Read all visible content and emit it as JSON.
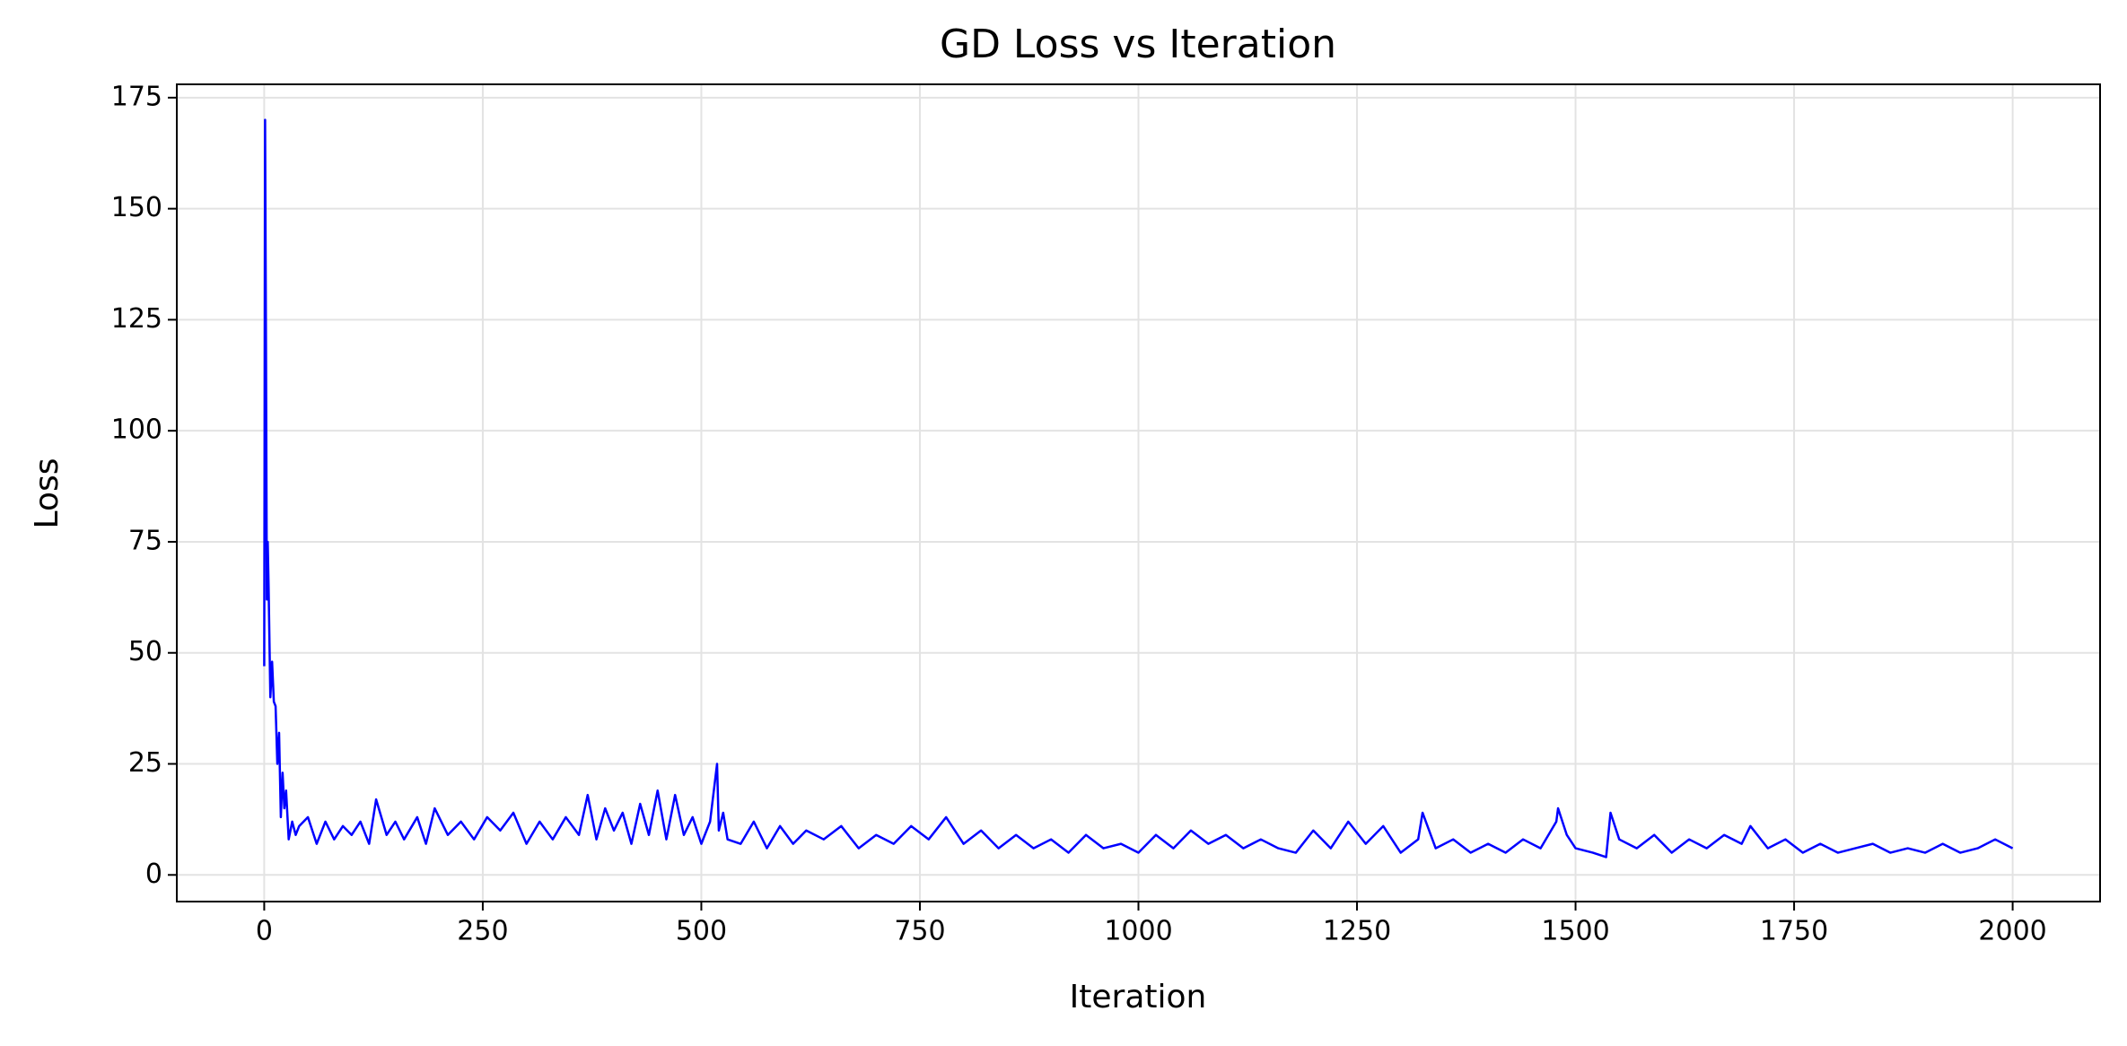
{
  "chart_data": {
    "type": "line",
    "title": "GD Loss vs Iteration",
    "x_label": "Iteration",
    "y_label": "Loss",
    "x": [
      0,
      1,
      2,
      3,
      4,
      5,
      7,
      9,
      11,
      13,
      15,
      17,
      19,
      21,
      23,
      25,
      28,
      32,
      36,
      40,
      50,
      60,
      70,
      80,
      90,
      100,
      110,
      120,
      128,
      140,
      150,
      160,
      175,
      185,
      195,
      210,
      225,
      240,
      255,
      270,
      285,
      300,
      315,
      330,
      345,
      360,
      370,
      380,
      390,
      400,
      410,
      420,
      430,
      440,
      450,
      460,
      470,
      480,
      490,
      500,
      510,
      518,
      520,
      525,
      530,
      545,
      560,
      575,
      590,
      605,
      620,
      640,
      660,
      680,
      700,
      720,
      740,
      760,
      780,
      800,
      820,
      840,
      860,
      880,
      900,
      920,
      940,
      960,
      980,
      1000,
      1020,
      1040,
      1060,
      1080,
      1100,
      1120,
      1140,
      1160,
      1180,
      1200,
      1220,
      1240,
      1260,
      1280,
      1300,
      1320,
      1325,
      1340,
      1360,
      1380,
      1400,
      1420,
      1440,
      1460,
      1478,
      1480,
      1490,
      1500,
      1520,
      1535,
      1540,
      1550,
      1570,
      1590,
      1610,
      1630,
      1650,
      1670,
      1690,
      1700,
      1720,
      1740,
      1760,
      1780,
      1800,
      1820,
      1840,
      1860,
      1880,
      1900,
      1920,
      1940,
      1960,
      1980,
      2000
    ],
    "series": [
      {
        "name": "GD",
        "color": "#0000ff",
        "values": [
          47,
          170,
          120,
          62,
          75,
          65,
          40,
          48,
          39,
          38,
          25,
          32,
          13,
          23,
          15,
          19,
          8,
          12,
          9,
          11,
          13,
          7,
          12,
          8,
          11,
          9,
          12,
          7,
          17,
          9,
          12,
          8,
          13,
          7,
          15,
          9,
          12,
          8,
          13,
          10,
          14,
          7,
          12,
          8,
          13,
          9,
          18,
          8,
          15,
          10,
          14,
          7,
          16,
          9,
          19,
          8,
          18,
          9,
          13,
          7,
          12,
          25,
          10,
          14,
          8,
          7,
          12,
          6,
          11,
          7,
          10,
          8,
          11,
          6,
          9,
          7,
          11,
          8,
          13,
          7,
          10,
          6,
          9,
          6,
          8,
          5,
          9,
          6,
          7,
          5,
          9,
          6,
          10,
          7,
          9,
          6,
          8,
          6,
          5,
          10,
          6,
          12,
          7,
          11,
          5,
          8,
          14,
          6,
          8,
          5,
          7,
          5,
          8,
          6,
          12,
          15,
          9,
          6,
          5,
          4,
          14,
          8,
          6,
          9,
          5,
          8,
          6,
          9,
          7,
          11,
          6,
          8,
          5,
          7,
          5,
          6,
          7,
          5,
          6,
          5,
          7,
          5,
          6,
          8,
          6
        ]
      }
    ],
    "xlim": [
      -100,
      2100
    ],
    "ylim": [
      -6,
      178
    ],
    "xticks": [
      0,
      250,
      500,
      750,
      1000,
      1250,
      1500,
      1750,
      2000
    ],
    "yticks": [
      0,
      25,
      50,
      75,
      100,
      125,
      150,
      175
    ],
    "grid": true
  }
}
